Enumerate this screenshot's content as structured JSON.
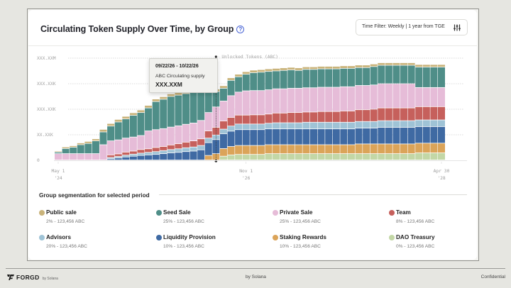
{
  "header": {
    "title": "Circulating Token Supply Over Time, by Group",
    "help_icon": "question-circle-icon",
    "filter_label": "Time Filter: Weekly  |  1 year from TGE",
    "filter_icon": "sliders-icon"
  },
  "tooltip": {
    "range": "09/22/26 - 10/22/26",
    "label": "ABC Circulating supply",
    "value": "XXX.XXM"
  },
  "segmentation": {
    "title": "Group segmentation for selected period",
    "items": [
      {
        "name": "Public sale",
        "value": "2%  -  123,456 ABC",
        "color": "#c9b37a"
      },
      {
        "name": "Seed Sale",
        "value": "25%  -  123,456 ABC",
        "color": "#4f8e88"
      },
      {
        "name": "Private Sale",
        "value": "25%  -  123,456 ABC",
        "color": "#e6bcd8"
      },
      {
        "name": "Team",
        "value": "8%  -  123,456 ABC",
        "color": "#c6605c"
      },
      {
        "name": "Advisors",
        "value": "20%  -  123,456 ABC",
        "color": "#9fc3d6"
      },
      {
        "name": "Liquidity Provision",
        "value": "10%  -  123,456 ABC",
        "color": "#3f6aa3"
      },
      {
        "name": "Staking Rewards",
        "value": "10%  -  123,456 ABC",
        "color": "#dba459"
      },
      {
        "name": "DAO Treasury",
        "value": "0%  -  123,456 ABC",
        "color": "#c3d7a6"
      }
    ]
  },
  "footer": {
    "brand": "FORGD",
    "brand_sub": "by Solana",
    "center": "by Solana",
    "right": "Confidential"
  },
  "chart_data": {
    "type": "bar",
    "stacked": true,
    "title": "Circulating Token Supply Over Time, by Group",
    "xlabel": "",
    "ylabel": "",
    "y_tick_labels": [
      "0",
      "XX.XXK",
      "XXX.XXK",
      "XXX.XXK",
      "XXX.XXM"
    ],
    "y_ticks": [
      0,
      1,
      2,
      3,
      4
    ],
    "ylim": [
      0,
      4
    ],
    "x_tick_labels": [
      {
        "line1": "May 1",
        "line2": "'24",
        "index": 0
      },
      {
        "line1": "Nov 1",
        "line2": "'26",
        "index": 25
      },
      {
        "line1": "Apr 30",
        "line2": "'28",
        "index": 51
      }
    ],
    "annotation": "Unlocked Tokens (ABC)",
    "highlight_index": 21,
    "grid": true,
    "legend": "bottom",
    "series_order_bottom_to_top": [
      "DAO Treasury",
      "Staking Rewards",
      "Liquidity Provision",
      "Advisors",
      "Team",
      "Private Sale",
      "Seed Sale",
      "Public sale"
    ],
    "series": [
      {
        "name": "DAO Treasury",
        "color": "#c3d7a6",
        "values": [
          0,
          0,
          0,
          0,
          0,
          0,
          0,
          0,
          0,
          0,
          0,
          0,
          0,
          0,
          0,
          0,
          0,
          0,
          0,
          0,
          0,
          0,
          0.15,
          0.2,
          0.22,
          0.22,
          0.22,
          0.22,
          0.25,
          0.25,
          0.25,
          0.25,
          0.25,
          0.25,
          0.25,
          0.25,
          0.25,
          0.25,
          0.25,
          0.25,
          0.25,
          0.25,
          0.25,
          0.25,
          0.25,
          0.25,
          0.25,
          0.25,
          0.28,
          0.28,
          0.28,
          0.28
        ]
      },
      {
        "name": "Staking Rewards",
        "color": "#dba459",
        "values": [
          0,
          0,
          0,
          0,
          0,
          0,
          0,
          0,
          0,
          0,
          0,
          0,
          0,
          0,
          0,
          0,
          0,
          0,
          0,
          0,
          0.18,
          0.25,
          0.3,
          0.33,
          0.35,
          0.35,
          0.35,
          0.35,
          0.35,
          0.35,
          0.35,
          0.35,
          0.35,
          0.35,
          0.35,
          0.35,
          0.35,
          0.35,
          0.35,
          0.35,
          0.38,
          0.38,
          0.38,
          0.38,
          0.38,
          0.38,
          0.38,
          0.38,
          0.38,
          0.38,
          0.38,
          0.38
        ]
      },
      {
        "name": "Liquidity Provision",
        "color": "#3f6aa3",
        "values": [
          0,
          0,
          0,
          0,
          0,
          0,
          0,
          0.05,
          0.08,
          0.12,
          0.15,
          0.18,
          0.2,
          0.22,
          0.25,
          0.28,
          0.3,
          0.33,
          0.35,
          0.4,
          0.5,
          0.55,
          0.58,
          0.6,
          0.62,
          0.62,
          0.62,
          0.62,
          0.62,
          0.62,
          0.62,
          0.62,
          0.62,
          0.62,
          0.62,
          0.62,
          0.62,
          0.62,
          0.62,
          0.62,
          0.62,
          0.62,
          0.62,
          0.65,
          0.65,
          0.65,
          0.65,
          0.65,
          0.65,
          0.65,
          0.65,
          0.65
        ]
      },
      {
        "name": "Advisors",
        "color": "#9fc3d6",
        "values": [
          0,
          0,
          0,
          0,
          0,
          0,
          0,
          0.05,
          0.06,
          0.07,
          0.08,
          0.09,
          0.1,
          0.11,
          0.12,
          0.13,
          0.14,
          0.15,
          0.16,
          0.17,
          0.18,
          0.18,
          0.18,
          0.2,
          0.22,
          0.22,
          0.22,
          0.22,
          0.22,
          0.24,
          0.24,
          0.24,
          0.24,
          0.26,
          0.26,
          0.26,
          0.26,
          0.26,
          0.26,
          0.26,
          0.26,
          0.26,
          0.26,
          0.26,
          0.26,
          0.26,
          0.26,
          0.26,
          0.26,
          0.26,
          0.26,
          0.26
        ]
      },
      {
        "name": "Team",
        "color": "#c6605c",
        "values": [
          0,
          0,
          0,
          0,
          0,
          0,
          0,
          0.1,
          0.1,
          0.12,
          0.12,
          0.14,
          0.14,
          0.16,
          0.16,
          0.18,
          0.2,
          0.22,
          0.24,
          0.26,
          0.28,
          0.3,
          0.32,
          0.34,
          0.35,
          0.35,
          0.36,
          0.36,
          0.36,
          0.38,
          0.38,
          0.4,
          0.4,
          0.4,
          0.4,
          0.42,
          0.42,
          0.42,
          0.44,
          0.44,
          0.46,
          0.46,
          0.48,
          0.5,
          0.5,
          0.5,
          0.5,
          0.5,
          0.52,
          0.52,
          0.52,
          0.52
        ]
      },
      {
        "name": "Private Sale",
        "color": "#e6bcd8",
        "values": [
          0.25,
          0.25,
          0.25,
          0.25,
          0.25,
          0.25,
          0.6,
          0.55,
          0.55,
          0.55,
          0.55,
          0.55,
          0.7,
          0.7,
          0.7,
          0.7,
          0.7,
          0.7,
          0.7,
          0.72,
          0.72,
          0.8,
          0.78,
          0.85,
          0.9,
          0.95,
          0.95,
          0.95,
          0.95,
          0.95,
          0.95,
          0.95,
          0.95,
          0.95,
          0.95,
          0.95,
          0.95,
          0.95,
          0.95,
          0.95,
          0.95,
          0.95,
          0.95,
          0.95,
          0.95,
          0.95,
          0.95,
          0.95,
          0.75,
          0.75,
          0.75,
          0.75
        ]
      },
      {
        "name": "Seed Sale",
        "color": "#4f8e88",
        "values": [
          0.06,
          0.2,
          0.25,
          0.35,
          0.4,
          0.5,
          0.5,
          0.58,
          0.7,
          0.75,
          0.85,
          0.9,
          0.9,
          1.1,
          1.15,
          1.2,
          1.2,
          1.2,
          1.2,
          1.3,
          1.1,
          0.6,
          0.5,
          0.6,
          0.6,
          0.65,
          0.7,
          0.72,
          0.72,
          0.7,
          0.72,
          0.72,
          0.7,
          0.72,
          0.72,
          0.72,
          0.72,
          0.72,
          0.72,
          0.72,
          0.7,
          0.7,
          0.72,
          0.72,
          0.72,
          0.72,
          0.72,
          0.72,
          0.8,
          0.8,
          0.8,
          0.8
        ]
      },
      {
        "name": "Public sale",
        "color": "#c9b37a",
        "values": [
          0.04,
          0.06,
          0.06,
          0.07,
          0.08,
          0.08,
          0.1,
          0.1,
          0.1,
          0.1,
          0.1,
          0.1,
          0.1,
          0.1,
          0.1,
          0.1,
          0.1,
          0.1,
          0.1,
          0.1,
          0.1,
          0.1,
          0.1,
          0.1,
          0.1,
          0.1,
          0.1,
          0.1,
          0.1,
          0.1,
          0.1,
          0.1,
          0.1,
          0.1,
          0.1,
          0.1,
          0.1,
          0.1,
          0.1,
          0.1,
          0.1,
          0.1,
          0.1,
          0.1,
          0.1,
          0.1,
          0.1,
          0.1,
          0.1,
          0.1,
          0.1,
          0.1
        ]
      }
    ]
  }
}
